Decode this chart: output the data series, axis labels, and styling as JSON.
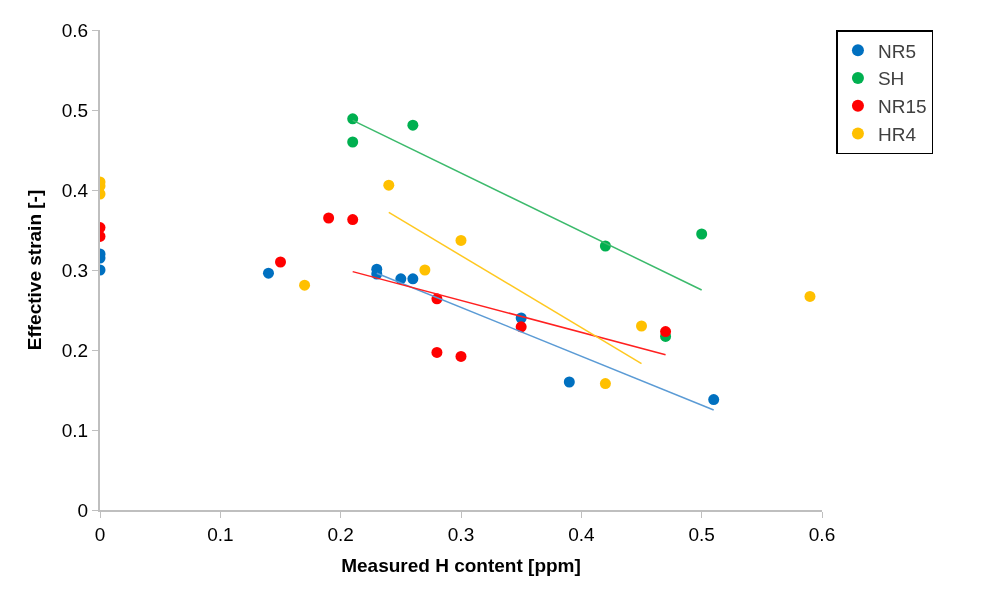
{
  "chart_data": {
    "type": "scatter",
    "xlabel": "Measured H content [ppm]",
    "ylabel": "Effective strain [-]",
    "xlim": [
      0,
      0.6
    ],
    "xticks": [
      0,
      0.1,
      0.2,
      0.3,
      0.4,
      0.5,
      0.6
    ],
    "ylim": [
      0,
      0.6
    ],
    "yticks": [
      0,
      0.1,
      0.2,
      0.3,
      0.4,
      0.5,
      0.6
    ],
    "grid": false,
    "legend": "top right",
    "marker": "circle",
    "series": [
      {
        "name": "NR5",
        "color": "#0070c0",
        "x": [
          0,
          0,
          0,
          0.14,
          0.23,
          0.23,
          0.25,
          0.26,
          0.35,
          0.39,
          0.51
        ],
        "values": [
          0.3,
          0.315,
          0.32,
          0.296,
          0.295,
          0.301,
          0.289,
          0.289,
          0.24,
          0.16,
          0.138
        ]
      },
      {
        "name": "SH",
        "color": "#00b050",
        "x": [
          0.21,
          0.21,
          0.26,
          0.42,
          0.47,
          0.5
        ],
        "values": [
          0.489,
          0.46,
          0.481,
          0.33,
          0.217,
          0.345
        ]
      },
      {
        "name": "NR15",
        "color": "#ff0000",
        "x": [
          0,
          0,
          0.15,
          0.19,
          0.21,
          0.28,
          0.28,
          0.3,
          0.35,
          0.47
        ],
        "values": [
          0.353,
          0.342,
          0.31,
          0.365,
          0.363,
          0.264,
          0.197,
          0.192,
          0.229,
          0.223
        ]
      },
      {
        "name": "HR4",
        "color": "#ffc000",
        "x": [
          0,
          0,
          0,
          0.17,
          0.24,
          0.27,
          0.3,
          0.42,
          0.45,
          0.59
        ],
        "values": [
          0.41,
          0.405,
          0.395,
          0.281,
          0.406,
          0.3,
          0.337,
          0.158,
          0.23,
          0.267
        ]
      },
      {
        "type": "line",
        "marker": "none",
        "color": "#5b9bd5",
        "x": [
          0.23,
          0.51
        ],
        "values": [
          0.296,
          0.125
        ]
      },
      {
        "type": "line",
        "marker": "none",
        "color": "#3cba6c",
        "x": [
          0.21,
          0.5
        ],
        "values": [
          0.487,
          0.275
        ]
      },
      {
        "type": "line",
        "marker": "none",
        "color": "#ff2020",
        "x": [
          0.21,
          0.47
        ],
        "values": [
          0.298,
          0.194
        ]
      },
      {
        "type": "line",
        "marker": "none",
        "color": "#ffc820",
        "x": [
          0.24,
          0.45
        ],
        "values": [
          0.372,
          0.183
        ]
      }
    ]
  }
}
